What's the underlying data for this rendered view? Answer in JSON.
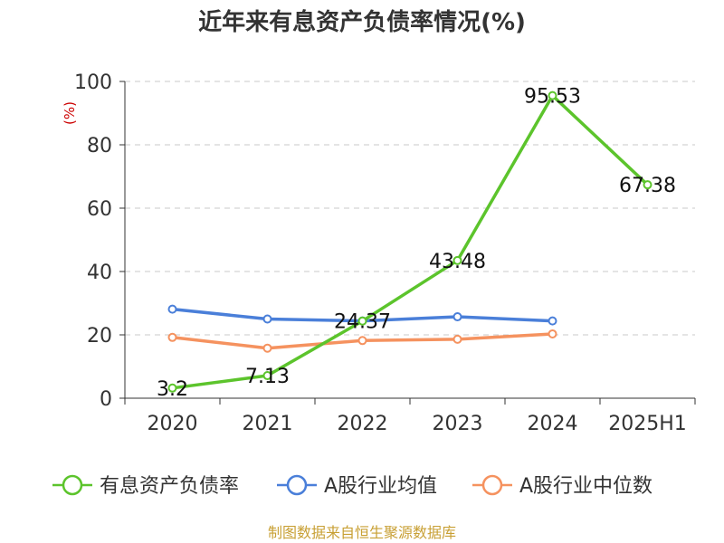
{
  "chart_data": {
    "type": "line",
    "title": "近年来有息资产负债率情况(%)",
    "ylabel": "(%)",
    "categories": [
      "2020",
      "2021",
      "2022",
      "2023",
      "2024",
      "2025H1"
    ],
    "ylim": [
      0,
      100
    ],
    "yticks": [
      "0",
      "20",
      "40",
      "60",
      "80",
      "100"
    ],
    "grid": true,
    "legend_position": "bottom",
    "series": [
      {
        "name": "有息资产负债率",
        "color": "#5cc42c",
        "values": [
          3.2,
          7.13,
          24.37,
          43.48,
          95.53,
          67.38
        ],
        "labels": [
          "3.2",
          "7.13",
          "24.37",
          "43.48",
          "95.53",
          "67.38"
        ]
      },
      {
        "name": "A股行业均值",
        "color": "#4a7fd9",
        "values": [
          28.1,
          25.0,
          24.4,
          25.7,
          24.4,
          null
        ]
      },
      {
        "name": "A股行业中位数",
        "color": "#f5925f",
        "values": [
          19.2,
          15.8,
          18.2,
          18.6,
          20.3,
          null
        ]
      }
    ]
  },
  "source": "制图数据来自恒生聚源数据库"
}
